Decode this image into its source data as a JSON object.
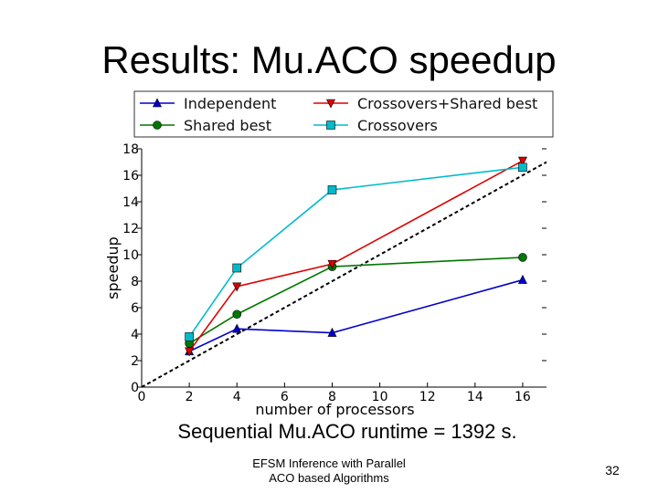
{
  "slide": {
    "title": "Results: Mu.ACO speedup",
    "caption": "Sequential Mu.ACO runtime = 1392 s.",
    "footer_line1": "EFSM Inference with Parallel",
    "footer_line2": "ACO based Algorithms",
    "slide_number": "32"
  },
  "chart_data": {
    "type": "line",
    "title": "",
    "xlabel": "number of processors",
    "ylabel": "speedup",
    "xlim": [
      0,
      17
    ],
    "ylim": [
      0,
      18
    ],
    "xticks": [
      0,
      2,
      4,
      6,
      8,
      10,
      12,
      14,
      16
    ],
    "yticks": [
      0,
      2,
      4,
      6,
      8,
      10,
      12,
      14,
      16,
      18
    ],
    "grid": false,
    "legend_position": "top",
    "reference_line": {
      "style": "dashed",
      "color": "#000000",
      "from": [
        0,
        0
      ],
      "to": [
        17,
        17
      ]
    },
    "series": [
      {
        "name": "Independent",
        "color": "#0000cc",
        "marker": "triangle-up",
        "x": [
          2,
          4,
          8,
          16
        ],
        "y": [
          2.7,
          4.4,
          4.1,
          8.1
        ]
      },
      {
        "name": "Shared best",
        "color": "#007700",
        "marker": "circle",
        "x": [
          2,
          4,
          8,
          16
        ],
        "y": [
          3.3,
          5.5,
          9.1,
          9.8
        ]
      },
      {
        "name": "Crossovers+Shared best",
        "color": "#dd0000",
        "marker": "triangle-down",
        "x": [
          2,
          4,
          8,
          16
        ],
        "y": [
          2.7,
          7.6,
          9.3,
          17.1
        ]
      },
      {
        "name": "Crossovers",
        "color": "#00bbcc",
        "marker": "square",
        "x": [
          2,
          4,
          8,
          16
        ],
        "y": [
          3.8,
          9.0,
          14.9,
          16.6
        ]
      }
    ]
  }
}
